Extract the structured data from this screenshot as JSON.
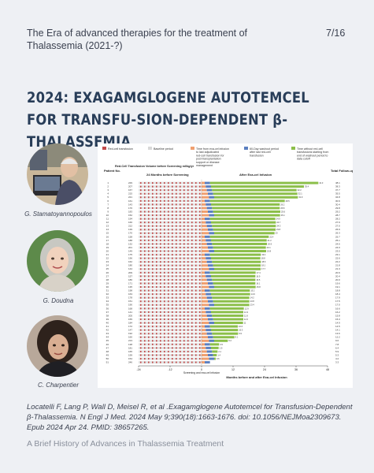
{
  "header": {
    "title": "The Era of advanced therapies for the treatment of Thalassemia (2021-?)",
    "page": "7/16"
  },
  "slide": {
    "title": "2024: EXAGAMGLOGENE AUTOTEMCEL FOR TRANSFU-SION-DEPENDENT β-THALASSEMIA"
  },
  "people": [
    {
      "name": "G. Stamatoyannopoulos"
    },
    {
      "name": "G. Doudna"
    },
    {
      "name": "C. Charpentier"
    }
  ],
  "figure": {
    "legend": [
      {
        "label": "Red-cell transfusion",
        "color": "#c24a4a"
      },
      {
        "label": "Baseline period",
        "color": "#d8d8d8"
      },
      {
        "label": "Time from exa-cel infusion to last adjudicated red-cell transfusion for post-transplantation support or disease management",
        "color": "#f0a070"
      },
      {
        "label": "60-Day washout period after last red-cell transfusion",
        "color": "#5b7fc0"
      },
      {
        "label": "Time without red-cell transfusions starting from end of washout period to data cutoff",
        "color": "#8cbf4a"
      }
    ],
    "col_patient": "Patient No.",
    "col_volume": "Red-Cell Transfusion Volume before Screening ml/kg/yr",
    "col_before": "24 Months before Screening",
    "col_after": "After Exa-cel Infusion",
    "col_followup": "Total Follow-up mo",
    "x_label": "Months before and after Exa-cel Infusion",
    "screening_label": "Screening and exa-cel infusion",
    "x_ticks": [
      "-24",
      "-12",
      "0",
      "12",
      "24",
      "36",
      "48"
    ],
    "x_tick_values": [
      -24,
      -12,
      0,
      12,
      24,
      36,
      48
    ],
    "patients": [
      {
        "no": "1",
        "vol": "229",
        "green": 41.3,
        "fu": "48.1"
      },
      {
        "no": "2",
        "vol": "207",
        "green": 35.4,
        "fu": "38.3"
      },
      {
        "no": "3",
        "vol": "167",
        "green": 32.2,
        "fu": "37.7"
      },
      {
        "no": "4",
        "vol": "215",
        "green": 32.1,
        "fu": "35.5"
      },
      {
        "no": "5",
        "vol": "221",
        "green": 31.9,
        "fu": "34.8"
      },
      {
        "no": "6",
        "vol": "161",
        "green": 28.5,
        "fu": "30.9"
      },
      {
        "no": "7",
        "vol": "143",
        "green": 26.2,
        "fu": "30.4"
      },
      {
        "no": "8",
        "vol": "176",
        "green": 25.8,
        "fu": "29.8"
      },
      {
        "no": "9",
        "vol": "183",
        "green": 25.6,
        "fu": "29.2"
      },
      {
        "no": "10",
        "vol": "152",
        "green": 25.1,
        "fu": "28.7"
      },
      {
        "no": "11",
        "vol": "194",
        "green": 24.9,
        "fu": "28.2"
      },
      {
        "no": "12",
        "vol": "166",
        "green": 24.7,
        "fu": "27.9"
      },
      {
        "no": "13",
        "vol": "212",
        "green": 24.3,
        "fu": "27.0"
      },
      {
        "no": "14",
        "vol": "139",
        "green": 23.8,
        "fu": "26.9"
      },
      {
        "no": "15",
        "vol": "170",
        "green": 23.0,
        "fu": "26.3"
      },
      {
        "no": "16",
        "vol": "158",
        "green": 22.4,
        "fu": "25.7"
      },
      {
        "no": "17",
        "vol": "188",
        "green": 21.2,
        "fu": "25.1"
      },
      {
        "no": "18",
        "vol": "132",
        "green": 20.9,
        "fu": "24.6"
      },
      {
        "no": "19",
        "vol": "201",
        "green": 20.1,
        "fu": "24.0"
      },
      {
        "no": "20",
        "vol": "149",
        "green": 19.8,
        "fu": "23.5"
      },
      {
        "no": "21",
        "vol": "175",
        "green": 19.4,
        "fu": "23.1"
      },
      {
        "no": "22",
        "vol": "196",
        "green": 18.8,
        "fu": "22.6"
      },
      {
        "no": "23",
        "vol": "162",
        "green": 18.6,
        "fu": "22.2"
      },
      {
        "no": "24",
        "vol": "180",
        "green": 18.1,
        "fu": "21.8"
      },
      {
        "no": "25",
        "vol": "144",
        "green": 17.7,
        "fu": "21.3"
      },
      {
        "no": "26",
        "vol": "209",
        "green": 17.4,
        "fu": "20.9"
      },
      {
        "no": "27",
        "vol": "157",
        "green": 16.9,
        "fu": "20.4"
      },
      {
        "no": "28",
        "vol": "186",
        "green": 16.5,
        "fu": "20.0"
      },
      {
        "no": "29",
        "vol": "171",
        "green": 16.1,
        "fu": "19.6"
      },
      {
        "no": "30",
        "vol": "135",
        "green": 15.8,
        "fu": "19.1"
      },
      {
        "no": "31",
        "vol": "198",
        "green": 15.2,
        "fu": "18.8"
      },
      {
        "no": "32",
        "vol": "163",
        "green": 14.9,
        "fu": "18.4"
      },
      {
        "no": "33",
        "vol": "178",
        "green": 14.2,
        "fu": "17.9"
      },
      {
        "no": "34",
        "vol": "151",
        "green": 13.8,
        "fu": "17.5"
      },
      {
        "no": "35",
        "vol": "190",
        "green": 13.4,
        "fu": "17.0"
      },
      {
        "no": "36",
        "vol": "168",
        "green": 12.9,
        "fu": "16.6"
      },
      {
        "no": "37",
        "vol": "141",
        "green": 12.3,
        "fu": "16.2"
      },
      {
        "no": "38",
        "vol": "205",
        "green": 11.9,
        "fu": "15.8"
      },
      {
        "no": "39",
        "vol": "155",
        "green": 11.5,
        "fu": "15.3"
      },
      {
        "no": "40",
        "vol": "184",
        "green": 11.0,
        "fu": "14.9"
      },
      {
        "no": "41",
        "vol": "172",
        "green": 10.6,
        "fu": "14.5"
      },
      {
        "no": "42",
        "vol": "147",
        "green": 10.3,
        "fu": "14.1"
      },
      {
        "no": "43",
        "vol": "192",
        "green": 9.9,
        "fu": "13.6"
      },
      {
        "no": "44",
        "vol": "160",
        "green": 8.1,
        "fu": "12.2"
      },
      {
        "no": "45",
        "vol": "213",
        "green": 5.2,
        "fu": "9.6"
      },
      {
        "no": "46",
        "vol": "138",
        "green": 3.5,
        "fu": "7.8"
      },
      {
        "no": "47",
        "vol": "181",
        "green": 2.9,
        "fu": "6.4"
      },
      {
        "no": "48",
        "vol": "165",
        "green": 2.1,
        "fu": "5.9"
      },
      {
        "no": "49",
        "vol": "199",
        "green": 1.4,
        "fu": "5.3"
      },
      {
        "no": "50",
        "vol": "154",
        "green": 0.6,
        "fu": "4.2"
      },
      {
        "no": "51",
        "vol": "246",
        "green": 0,
        "fu": "3.3"
      }
    ]
  },
  "citation": "Locatelli F, Lang P, Wall D, Meisel R, et al .Exagamglogene Autotemcel for Transfusion-Dependent β-Thalassemia. N Engl J Med. 2024 May 9;390(18):1663-1676. doi: 10.1056/NEJMoa2309673. Epub 2024 Apr 24. PMID: 38657265.",
  "footer": "A Brief History of Advances in Thalassemia Treatment"
}
